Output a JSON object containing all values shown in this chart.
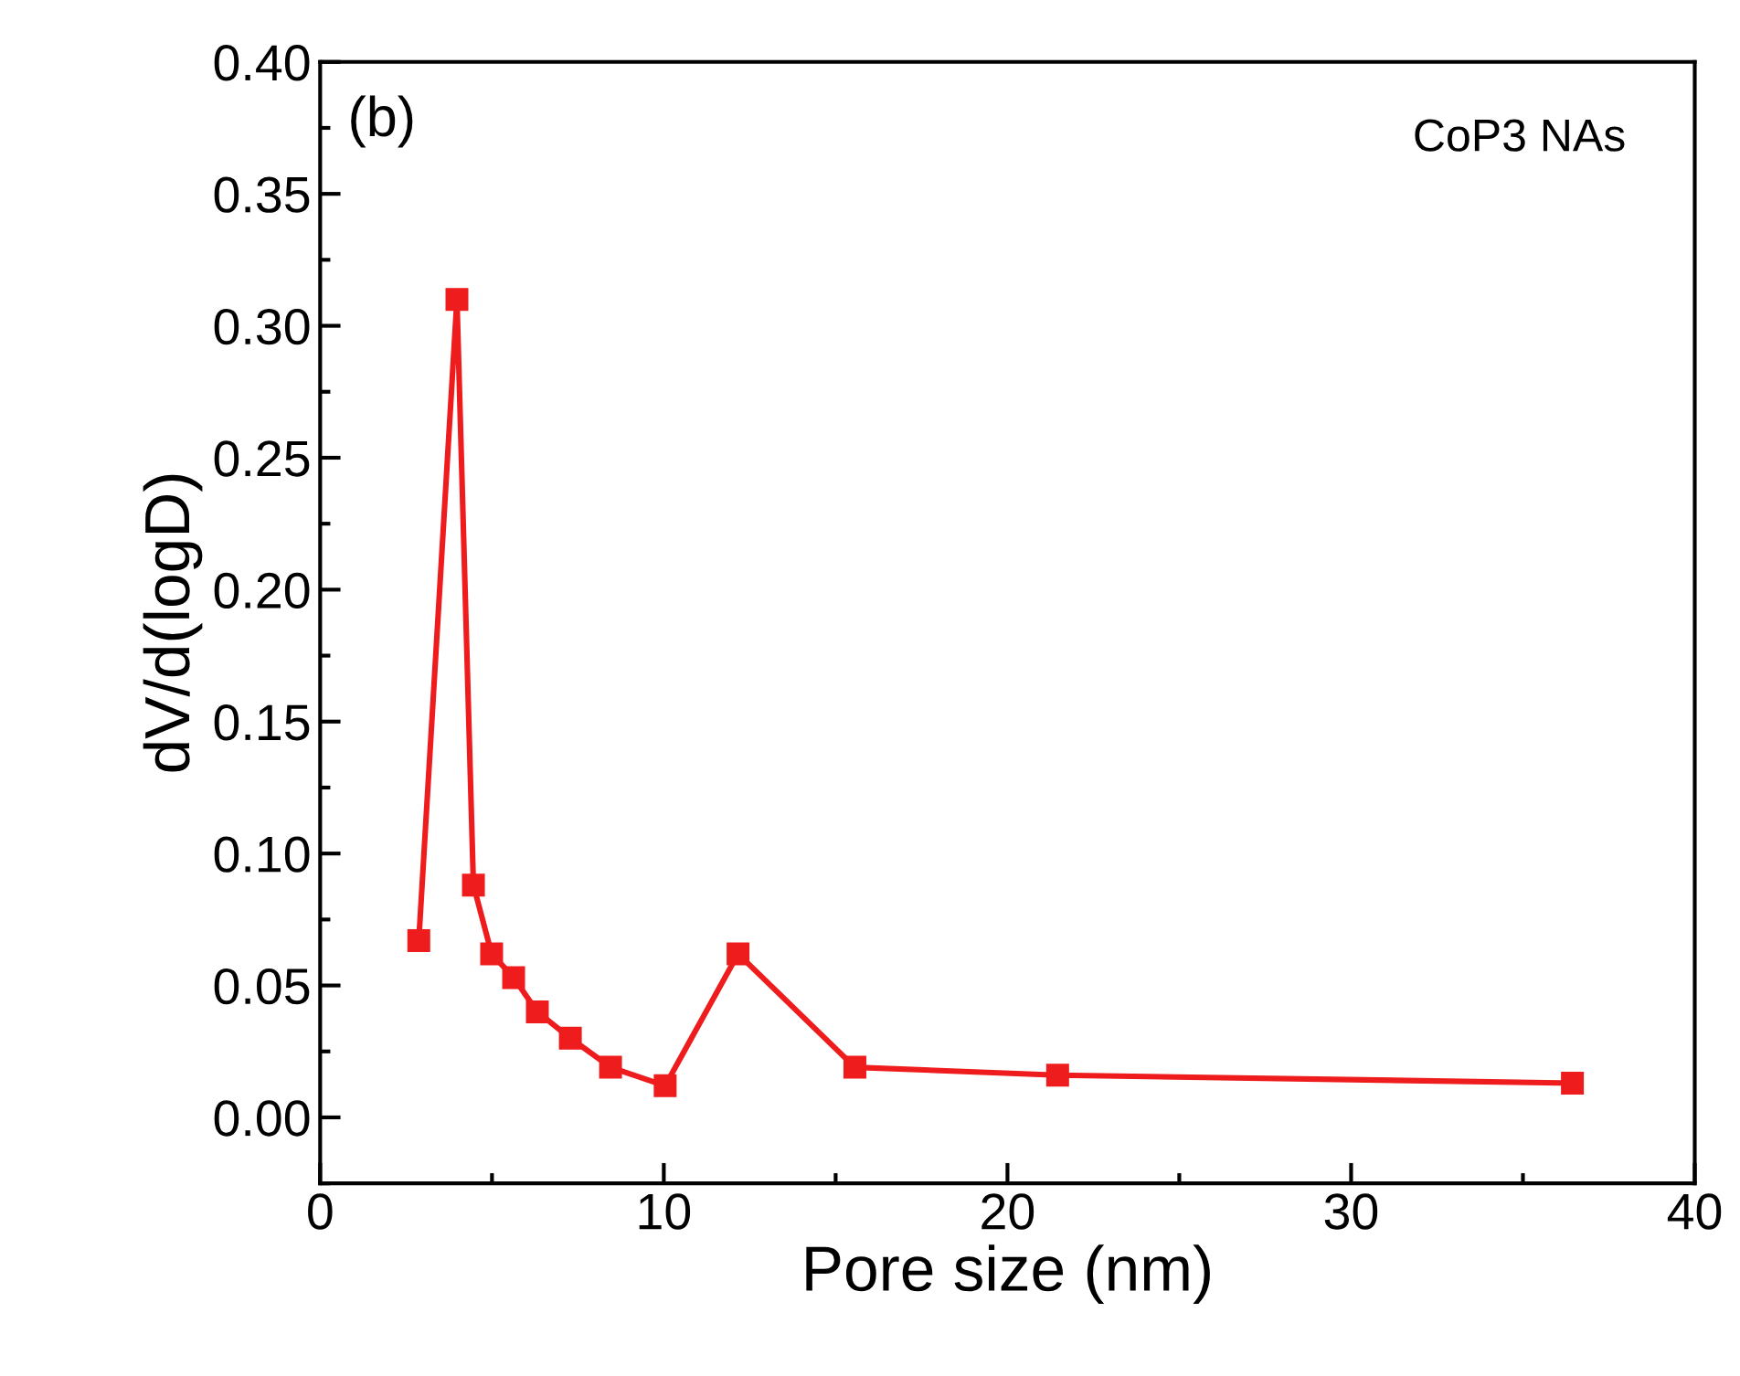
{
  "chart_data": {
    "type": "line",
    "xlabel": "Pore size (nm)",
    "ylabel": "dV/d(logD)",
    "annotations": [
      "(b)",
      "CoP3 NAs"
    ],
    "series": [
      {
        "color": "#ee1c1c",
        "x": [
          2.87,
          3.98,
          4.46,
          4.99,
          5.63,
          6.32,
          7.28,
          8.45,
          10.04,
          12.16,
          15.56,
          21.46,
          36.44
        ],
        "values": [
          0.067,
          0.31,
          0.088,
          0.062,
          0.053,
          0.04,
          0.03,
          0.019,
          0.012,
          0.062,
          0.019,
          0.016,
          0.013
        ]
      }
    ],
    "xlim": [
      0,
      40
    ],
    "xticks": [
      0,
      10,
      20,
      30,
      40
    ],
    "ylim": [
      -0.025,
      0.4
    ],
    "yticks": [
      {
        "value": 0,
        "label": "0.00"
      },
      {
        "value": 0.05,
        "label": "0.05"
      },
      {
        "value": 0.1,
        "label": "0.10"
      },
      {
        "value": 0.15,
        "label": "0.15"
      },
      {
        "value": 0.2,
        "label": "0.20"
      },
      {
        "value": 0.25,
        "label": "0.25"
      },
      {
        "value": 0.3,
        "label": "0.30"
      },
      {
        "value": 0.35,
        "label": "0.35"
      },
      {
        "value": 0.4,
        "label": "0.40"
      }
    ],
    "marker": "square",
    "line_style": "solid",
    "grid": false,
    "legend": false
  }
}
